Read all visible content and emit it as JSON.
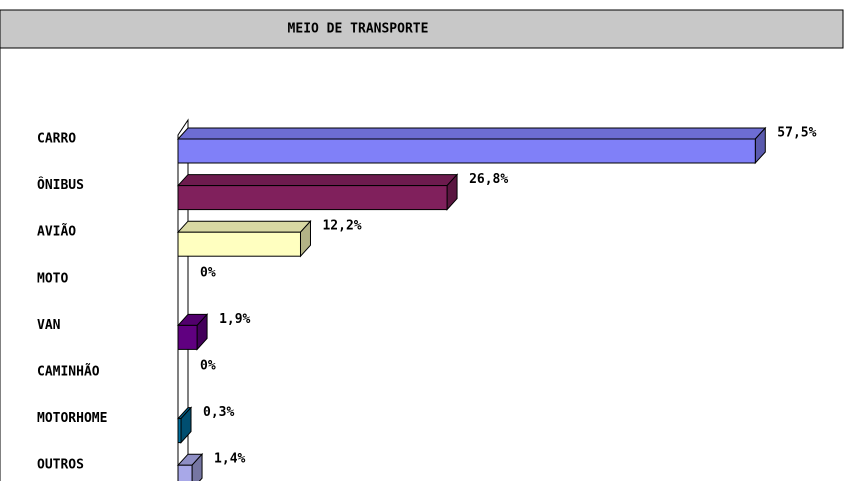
{
  "chart_data": {
    "type": "bar",
    "orientation": "horizontal",
    "title": "MEIO DE TRANSPORTE",
    "categories": [
      "CARRO",
      "ÔNIBUS",
      "AVIÃO",
      "MOTO",
      "VAN",
      "CAMINHÃO",
      "MOTORHOME",
      "OUTROS"
    ],
    "values": [
      57.5,
      26.8,
      12.2,
      0,
      1.9,
      0,
      0.3,
      1.4
    ],
    "value_labels": [
      "57,5%",
      "26,8%",
      "12,2%",
      "0%",
      "1,9%",
      "0%",
      "0,3%",
      "1,4%"
    ],
    "colors": [
      "#8080f8",
      "#80205c",
      "#ffffc0",
      "#c0c0c0",
      "#600080",
      "#c0c0c0",
      "#0070a0",
      "#a8a8e8"
    ]
  }
}
